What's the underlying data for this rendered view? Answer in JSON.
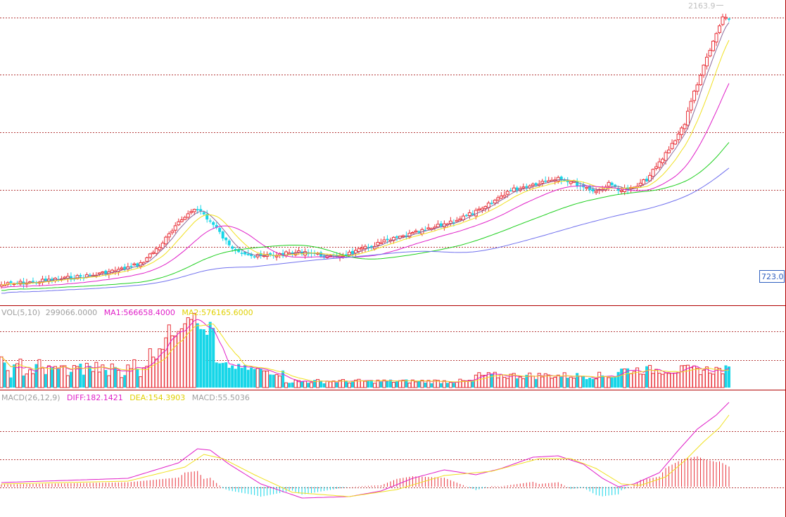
{
  "chart_data": [
    {
      "type": "candlestick",
      "panel": "price",
      "max_label": "2163.9",
      "right_label": "723.0",
      "colors": {
        "up": "#e8323a",
        "down": "#16d6e8",
        "ma5": "#8a6a9a",
        "ma10": "#f0e020",
        "ma20": "#e020c8",
        "ma60": "#20d020",
        "ma120": "#7070ee"
      }
    },
    {
      "type": "bar",
      "panel": "volume",
      "legend": {
        "vol_label": "VOL(5,10)",
        "vol_value": "299066.0000",
        "ma1_label": "MA1:566658.4000",
        "ma2_label": "MA2:576165.6000"
      },
      "colors": {
        "ma1": "#e020c8",
        "ma2": "#f0e020"
      }
    },
    {
      "type": "line",
      "panel": "macd",
      "legend": {
        "macd_params": "MACD(26,12,9)",
        "diff_label": "DIFF:182.1421",
        "dea_label": "DEA:154.3903",
        "macd_label": "MACD:55.5036"
      },
      "colors": {
        "diff": "#e020c8",
        "dea": "#f0e020",
        "hist_pos": "#e8323a",
        "hist_neg": "#16d6e8"
      }
    }
  ]
}
